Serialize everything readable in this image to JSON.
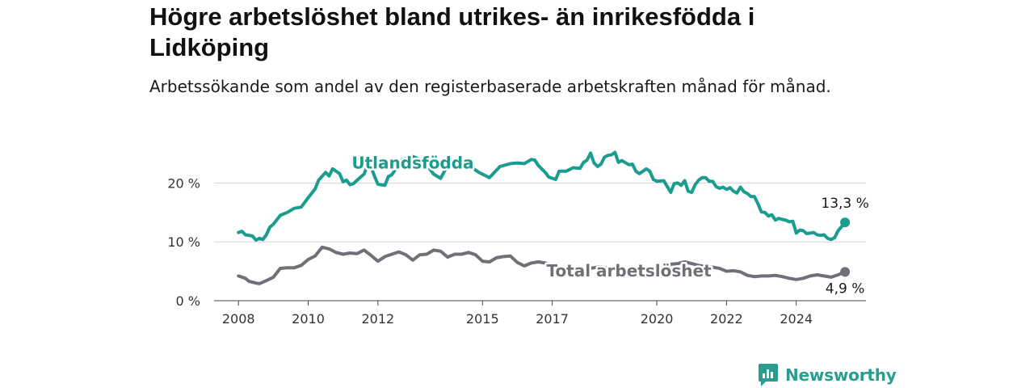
{
  "header": {
    "title": "Högre arbetslöshet bland utrikes- än inrikesfödda i Lidköping",
    "subtitle": "Arbetssökande som andel av den registerbaserade arbetskraften månad för månad."
  },
  "brand": {
    "name": "Newsworthy",
    "logo_icon": "bar-chart-bubble-icon",
    "color": "#2a9d8f"
  },
  "chart_data": {
    "type": "line",
    "title": "",
    "xlabel": "",
    "ylabel": "",
    "xlim": [
      2007.3,
      2026.0
    ],
    "ylim": [
      0,
      25
    ],
    "x_ticks": [
      {
        "value": 2008,
        "label": "2008"
      },
      {
        "value": 2010,
        "label": "2010"
      },
      {
        "value": 2012,
        "label": "2012"
      },
      {
        "value": 2015,
        "label": "2015"
      },
      {
        "value": 2017,
        "label": "2017"
      },
      {
        "value": 2020,
        "label": "2020"
      },
      {
        "value": 2022,
        "label": "2022"
      },
      {
        "value": 2024,
        "label": "2024"
      }
    ],
    "y_ticks": [
      {
        "value": 0,
        "label": "0 %"
      },
      {
        "value": 10,
        "label": "10 %"
      },
      {
        "value": 20,
        "label": "20 %"
      }
    ],
    "grid": "horizontal",
    "series": [
      {
        "name": "Utlandsfödda",
        "color": "#1a9c8e",
        "end_label": "13,3 %",
        "end_value": 13.3,
        "points": [
          [
            2008.0,
            11.6
          ],
          [
            2008.1,
            11.8
          ],
          [
            2008.2,
            11.2
          ],
          [
            2008.4,
            11.0
          ],
          [
            2008.5,
            10.3
          ],
          [
            2008.6,
            10.6
          ],
          [
            2008.7,
            10.4
          ],
          [
            2008.8,
            11.2
          ],
          [
            2008.9,
            12.5
          ],
          [
            2009.0,
            13.0
          ],
          [
            2009.2,
            14.5
          ],
          [
            2009.4,
            15.0
          ],
          [
            2009.6,
            15.7
          ],
          [
            2009.8,
            15.9
          ],
          [
            2010.0,
            17.5
          ],
          [
            2010.2,
            19.0
          ],
          [
            2010.3,
            20.5
          ],
          [
            2010.5,
            21.8
          ],
          [
            2010.6,
            21.2
          ],
          [
            2010.7,
            22.4
          ],
          [
            2010.9,
            21.6
          ],
          [
            2011.0,
            20.2
          ],
          [
            2011.1,
            20.5
          ],
          [
            2011.2,
            19.7
          ],
          [
            2011.3,
            19.9
          ],
          [
            2011.5,
            21.0
          ],
          [
            2011.6,
            21.5
          ],
          [
            2011.7,
            23.0
          ],
          [
            2011.8,
            22.8
          ],
          [
            2011.9,
            21.2
          ],
          [
            2012.0,
            19.8
          ],
          [
            2012.2,
            19.6
          ],
          [
            2012.3,
            21.1
          ],
          [
            2012.4,
            21.4
          ],
          [
            2012.5,
            22.3
          ],
          [
            2012.7,
            24.0
          ],
          [
            2013.0,
            24.5
          ],
          [
            2013.3,
            23.8
          ],
          [
            2013.6,
            21.5
          ],
          [
            2013.8,
            20.8
          ],
          [
            2014.0,
            23.0
          ],
          [
            2014.3,
            23.8
          ],
          [
            2014.6,
            23.0
          ],
          [
            2014.9,
            21.8
          ],
          [
            2015.2,
            20.9
          ],
          [
            2015.5,
            22.8
          ],
          [
            2015.8,
            23.3
          ],
          [
            2016.0,
            23.4
          ],
          [
            2016.2,
            23.3
          ],
          [
            2016.4,
            24.0
          ],
          [
            2016.5,
            23.9
          ],
          [
            2016.6,
            23.0
          ],
          [
            2016.8,
            21.8
          ],
          [
            2016.9,
            21.0
          ],
          [
            2017.1,
            20.6
          ],
          [
            2017.2,
            22.0
          ],
          [
            2017.4,
            22.0
          ],
          [
            2017.6,
            22.6
          ],
          [
            2017.8,
            22.5
          ],
          [
            2017.9,
            23.5
          ],
          [
            2018.0,
            23.9
          ],
          [
            2018.1,
            25.1
          ],
          [
            2018.2,
            23.4
          ],
          [
            2018.3,
            22.8
          ],
          [
            2018.4,
            23.2
          ],
          [
            2018.5,
            24.4
          ],
          [
            2018.6,
            24.7
          ],
          [
            2018.7,
            24.8
          ],
          [
            2018.8,
            25.2
          ],
          [
            2018.9,
            23.5
          ],
          [
            2019.0,
            23.8
          ],
          [
            2019.2,
            23.1
          ],
          [
            2019.3,
            23.2
          ],
          [
            2019.4,
            22.0
          ],
          [
            2019.5,
            21.6
          ],
          [
            2019.7,
            22.4
          ],
          [
            2019.8,
            22.0
          ],
          [
            2019.9,
            20.6
          ],
          [
            2020.0,
            20.3
          ],
          [
            2020.2,
            20.4
          ],
          [
            2020.3,
            19.4
          ],
          [
            2020.4,
            18.4
          ],
          [
            2020.5,
            19.9
          ],
          [
            2020.6,
            20.0
          ],
          [
            2020.7,
            19.6
          ],
          [
            2020.8,
            20.4
          ],
          [
            2020.9,
            18.6
          ],
          [
            2021.0,
            18.4
          ],
          [
            2021.1,
            19.7
          ],
          [
            2021.2,
            20.5
          ],
          [
            2021.3,
            20.9
          ],
          [
            2021.4,
            20.9
          ],
          [
            2021.5,
            20.3
          ],
          [
            2021.6,
            20.3
          ],
          [
            2021.7,
            19.4
          ],
          [
            2021.8,
            19.1
          ],
          [
            2021.9,
            19.3
          ],
          [
            2022.0,
            18.9
          ],
          [
            2022.1,
            19.2
          ],
          [
            2022.2,
            18.6
          ],
          [
            2022.3,
            18.3
          ],
          [
            2022.4,
            19.3
          ],
          [
            2022.5,
            18.5
          ],
          [
            2022.6,
            18.2
          ],
          [
            2022.7,
            17.7
          ],
          [
            2022.8,
            17.7
          ],
          [
            2022.9,
            16.5
          ],
          [
            2023.0,
            15.1
          ],
          [
            2023.1,
            15.0
          ],
          [
            2023.2,
            14.4
          ],
          [
            2023.3,
            14.6
          ],
          [
            2023.4,
            13.7
          ],
          [
            2023.5,
            14.0
          ],
          [
            2023.6,
            13.8
          ],
          [
            2023.7,
            13.7
          ],
          [
            2023.8,
            13.4
          ],
          [
            2023.9,
            13.5
          ],
          [
            2024.0,
            11.5
          ],
          [
            2024.1,
            12.0
          ],
          [
            2024.2,
            11.9
          ],
          [
            2024.3,
            11.4
          ],
          [
            2024.4,
            11.5
          ],
          [
            2024.5,
            11.6
          ],
          [
            2024.6,
            11.2
          ],
          [
            2024.7,
            11.1
          ],
          [
            2024.8,
            11.2
          ],
          [
            2024.9,
            10.6
          ],
          [
            2025.0,
            10.4
          ],
          [
            2025.1,
            10.7
          ],
          [
            2025.2,
            11.9
          ],
          [
            2025.3,
            12.6
          ],
          [
            2025.4,
            13.3
          ]
        ]
      },
      {
        "name": "Total arbetslöshet",
        "color": "#707079",
        "end_label": "4,9 %",
        "end_value": 4.9,
        "points": [
          [
            2008.0,
            4.2
          ],
          [
            2008.2,
            3.8
          ],
          [
            2008.3,
            3.3
          ],
          [
            2008.5,
            3.0
          ],
          [
            2008.6,
            2.9
          ],
          [
            2008.8,
            3.4
          ],
          [
            2009.0,
            4.0
          ],
          [
            2009.2,
            5.5
          ],
          [
            2009.4,
            5.6
          ],
          [
            2009.6,
            5.6
          ],
          [
            2009.8,
            6.0
          ],
          [
            2010.0,
            7.0
          ],
          [
            2010.2,
            7.6
          ],
          [
            2010.4,
            9.1
          ],
          [
            2010.6,
            8.8
          ],
          [
            2010.8,
            8.2
          ],
          [
            2011.0,
            7.9
          ],
          [
            2011.2,
            8.1
          ],
          [
            2011.4,
            8.0
          ],
          [
            2011.6,
            8.6
          ],
          [
            2011.8,
            7.7
          ],
          [
            2012.0,
            6.7
          ],
          [
            2012.2,
            7.5
          ],
          [
            2012.4,
            7.9
          ],
          [
            2012.6,
            8.3
          ],
          [
            2012.8,
            7.8
          ],
          [
            2013.0,
            6.9
          ],
          [
            2013.2,
            7.8
          ],
          [
            2013.4,
            7.9
          ],
          [
            2013.6,
            8.6
          ],
          [
            2013.8,
            8.4
          ],
          [
            2014.0,
            7.4
          ],
          [
            2014.2,
            7.9
          ],
          [
            2014.4,
            7.9
          ],
          [
            2014.6,
            8.2
          ],
          [
            2014.8,
            7.8
          ],
          [
            2015.0,
            6.7
          ],
          [
            2015.2,
            6.6
          ],
          [
            2015.4,
            7.3
          ],
          [
            2015.6,
            7.5
          ],
          [
            2015.8,
            7.6
          ],
          [
            2016.0,
            6.5
          ],
          [
            2016.2,
            5.9
          ],
          [
            2016.4,
            6.4
          ],
          [
            2016.6,
            6.6
          ],
          [
            2016.8,
            6.4
          ],
          [
            2017.0,
            5.9
          ],
          [
            2017.2,
            5.3
          ],
          [
            2017.4,
            5.6
          ],
          [
            2017.6,
            5.6
          ],
          [
            2017.8,
            5.4
          ],
          [
            2018.0,
            5.5
          ],
          [
            2018.2,
            5.6
          ],
          [
            2018.4,
            5.8
          ],
          [
            2018.6,
            5.5
          ],
          [
            2018.8,
            5.2
          ],
          [
            2019.0,
            5.1
          ],
          [
            2019.2,
            5.2
          ],
          [
            2019.4,
            5.4
          ],
          [
            2019.6,
            5.3
          ],
          [
            2019.8,
            5.5
          ],
          [
            2020.0,
            5.4
          ],
          [
            2020.2,
            5.6
          ],
          [
            2020.4,
            6.2
          ],
          [
            2020.6,
            6.3
          ],
          [
            2020.8,
            6.6
          ],
          [
            2021.0,
            6.3
          ],
          [
            2021.2,
            6.0
          ],
          [
            2021.4,
            5.8
          ],
          [
            2021.6,
            5.7
          ],
          [
            2021.8,
            5.5
          ],
          [
            2022.0,
            5.0
          ],
          [
            2022.2,
            5.1
          ],
          [
            2022.4,
            4.9
          ],
          [
            2022.6,
            4.3
          ],
          [
            2022.8,
            4.1
          ],
          [
            2023.0,
            4.2
          ],
          [
            2023.2,
            4.2
          ],
          [
            2023.4,
            4.3
          ],
          [
            2023.6,
            4.1
          ],
          [
            2023.8,
            3.8
          ],
          [
            2024.0,
            3.6
          ],
          [
            2024.2,
            3.8
          ],
          [
            2024.4,
            4.2
          ],
          [
            2024.6,
            4.4
          ],
          [
            2024.8,
            4.2
          ],
          [
            2025.0,
            4.0
          ],
          [
            2025.2,
            4.4
          ],
          [
            2025.4,
            4.9
          ]
        ]
      }
    ]
  }
}
